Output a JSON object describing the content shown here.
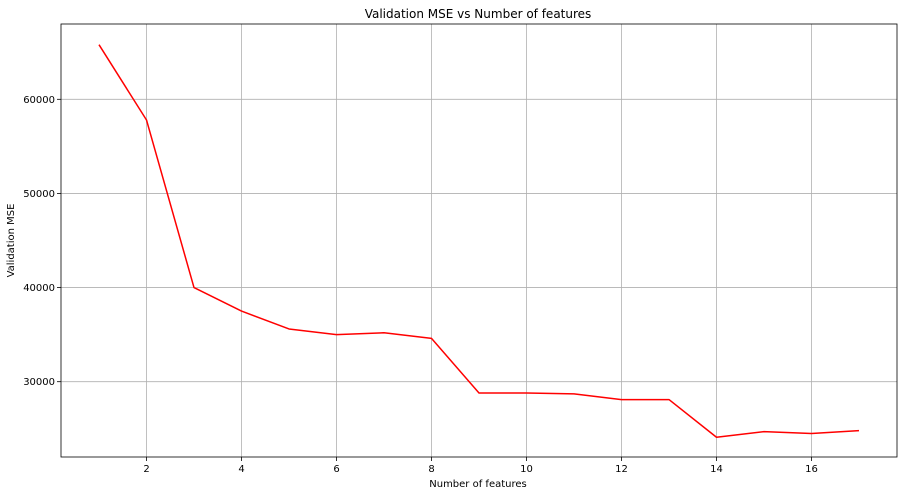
{
  "chart_data": {
    "type": "line",
    "title": "Validation MSE vs Number of features",
    "xlabel": "Number of features",
    "ylabel": "Validation MSE",
    "xlim": [
      0.2,
      17.8
    ],
    "ylim": [
      22000,
      68000
    ],
    "xticks": [
      2,
      4,
      6,
      8,
      10,
      12,
      14,
      16
    ],
    "yticks": [
      30000,
      40000,
      50000,
      60000
    ],
    "grid": true,
    "line_color": "#ff0000",
    "grid_color": "#b0b0b0",
    "series": [
      {
        "x": [
          1,
          2,
          3,
          4,
          5,
          6,
          7,
          8,
          9,
          10,
          11,
          12,
          13,
          14,
          15,
          16,
          17
        ],
        "values": [
          65800,
          57800,
          40000,
          37500,
          35600,
          35000,
          35200,
          34600,
          28800,
          28800,
          28700,
          28100,
          28100,
          24100,
          24700,
          24500,
          24800
        ]
      }
    ]
  }
}
